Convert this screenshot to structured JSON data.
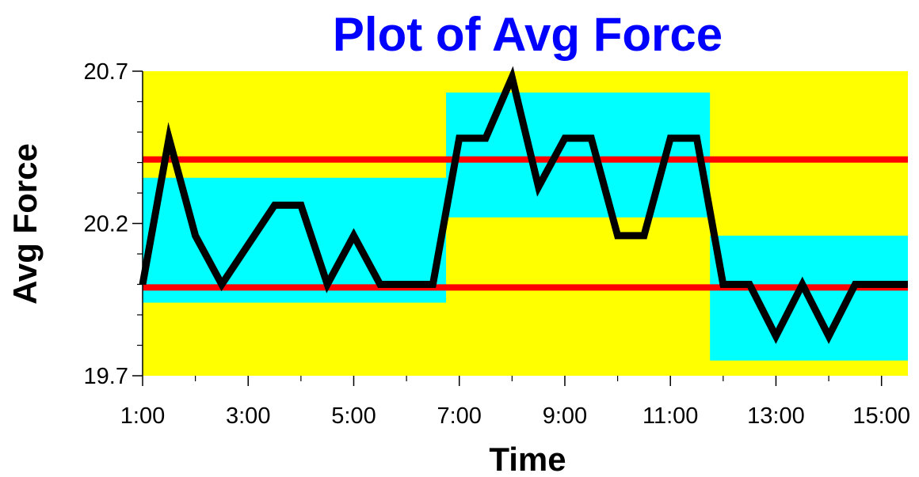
{
  "chart_data": {
    "type": "line",
    "title": "Plot of Avg Force",
    "xlabel": "Time",
    "ylabel": "Avg Force",
    "x_tick_labels": [
      "1:00",
      "3:00",
      "5:00",
      "7:00",
      "9:00",
      "11:00",
      "13:00",
      "15:00"
    ],
    "x_tick_values": [
      1,
      3,
      5,
      7,
      9,
      11,
      13,
      15
    ],
    "y_tick_labels": [
      "19.7",
      "20.2",
      "20.7"
    ],
    "y_tick_values": [
      19.7,
      20.2,
      20.7
    ],
    "xlim": [
      1,
      15.5
    ],
    "ylim": [
      19.7,
      20.7
    ],
    "grid": false,
    "series": [
      {
        "x": [
          1,
          1.5,
          2,
          2.5,
          3,
          3.5,
          4,
          4.5,
          5,
          5.5,
          6,
          6.5,
          7,
          7.5,
          8,
          8.5,
          9,
          9.5,
          10,
          10.5,
          11,
          11.5,
          12,
          12.5,
          13,
          13.5,
          14,
          14.5,
          15,
          15.5
        ],
        "values": [
          20.0,
          20.48,
          20.16,
          20.0,
          20.13,
          20.26,
          20.26,
          20.0,
          20.16,
          20.0,
          20.0,
          20.0,
          20.48,
          20.48,
          20.68,
          20.32,
          20.48,
          20.48,
          20.16,
          20.16,
          20.48,
          20.48,
          20.0,
          20.0,
          19.83,
          20.0,
          19.83,
          20.0,
          20.0,
          20.0
        ],
        "color": "#000000"
      }
    ],
    "control_limits": {
      "values": [
        20.41,
        19.99
      ],
      "color": "#ff0000"
    },
    "shaded_segments": {
      "color": "#00ffff",
      "segments": [
        {
          "x_start": 1,
          "x_end": 6.75,
          "y_low": 19.94,
          "y_high": 20.35
        },
        {
          "x_start": 6.75,
          "x_end": 11.75,
          "y_low": 20.22,
          "y_high": 20.63
        },
        {
          "x_start": 11.75,
          "x_end": 15.5,
          "y_low": 19.75,
          "y_high": 20.16
        }
      ]
    },
    "plot_background": "#ffff00"
  }
}
